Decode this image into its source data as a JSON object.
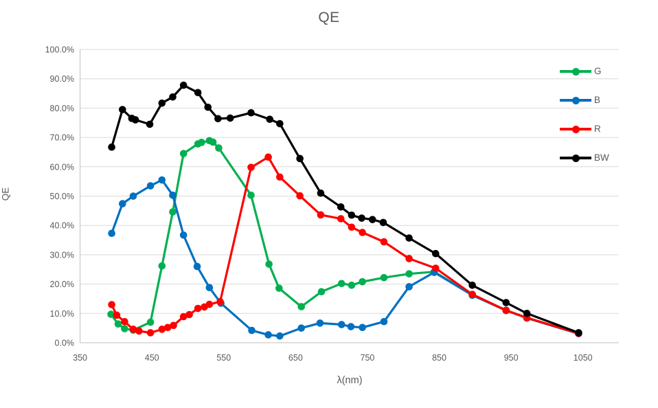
{
  "chart": {
    "title": "QE",
    "y_axis_title": "QE",
    "x_axis_title": "λ(nm)",
    "colors": {
      "text": "#595959",
      "gridline": "#D9D9D9",
      "axis_line": "#BFBFBF",
      "background": "#FFFFFF"
    }
  },
  "chart_data": {
    "type": "line",
    "title": "QE",
    "xlabel": "λ(nm)",
    "ylabel": "QE",
    "xlim": [
      350,
      1100
    ],
    "ylim": [
      0,
      100
    ],
    "grid": "horizontal",
    "legend_position": "right-overlay",
    "x_ticks": [
      {
        "value": 350,
        "label": "350"
      },
      {
        "value": 450,
        "label": "450"
      },
      {
        "value": 550,
        "label": "550"
      },
      {
        "value": 650,
        "label": "650"
      },
      {
        "value": 750,
        "label": "750"
      },
      {
        "value": 850,
        "label": "850"
      },
      {
        "value": 950,
        "label": "950"
      },
      {
        "value": 1050,
        "label": "1050"
      }
    ],
    "y_ticks": [
      {
        "value": 0,
        "label": "0.0%"
      },
      {
        "value": 10,
        "label": "10.0%"
      },
      {
        "value": 20,
        "label": "20.0%"
      },
      {
        "value": 30,
        "label": "30.0%"
      },
      {
        "value": 40,
        "label": "40.0%"
      },
      {
        "value": 50,
        "label": "50.0%"
      },
      {
        "value": 60,
        "label": "60.0%"
      },
      {
        "value": 70,
        "label": "70.0%"
      },
      {
        "value": 80,
        "label": "80.0%"
      },
      {
        "value": 90,
        "label": "90.0%"
      },
      {
        "value": 100,
        "label": "100.0%"
      }
    ],
    "series": [
      {
        "name": "G",
        "color": "#00B050",
        "points": [
          [
            393,
            9.7
          ],
          [
            403,
            6.4
          ],
          [
            412,
            4.8
          ],
          [
            424,
            4.3
          ],
          [
            448,
            7.0
          ],
          [
            464,
            26.2
          ],
          [
            479,
            44.6
          ],
          [
            494,
            64.5
          ],
          [
            514,
            67.8
          ],
          [
            519,
            68.3
          ],
          [
            530,
            68.9
          ],
          [
            535,
            68.4
          ],
          [
            543,
            66.4
          ],
          [
            588,
            50.3
          ],
          [
            613,
            26.8
          ],
          [
            627,
            18.6
          ],
          [
            658,
            12.3
          ],
          [
            686,
            17.4
          ],
          [
            714,
            20.2
          ],
          [
            728,
            19.6
          ],
          [
            743,
            20.8
          ],
          [
            773,
            22.2
          ],
          [
            808,
            23.5
          ],
          [
            843,
            24.2
          ],
          [
            896,
            16.4
          ],
          [
            943,
            11.1
          ],
          [
            972,
            8.5
          ],
          [
            1044,
            3.2
          ]
        ]
      },
      {
        "name": "B",
        "color": "#0070C0",
        "points": [
          [
            394,
            37.3
          ],
          [
            409,
            47.4
          ],
          [
            424,
            50.0
          ],
          [
            448,
            53.5
          ],
          [
            464,
            55.5
          ],
          [
            479,
            50.3
          ],
          [
            494,
            36.7
          ],
          [
            513,
            26.0
          ],
          [
            530,
            18.8
          ],
          [
            546,
            13.5
          ],
          [
            589,
            4.2
          ],
          [
            612,
            2.7
          ],
          [
            628,
            2.3
          ],
          [
            658,
            5.0
          ],
          [
            684,
            6.7
          ],
          [
            714,
            6.2
          ],
          [
            727,
            5.5
          ],
          [
            743,
            5.2
          ],
          [
            773,
            7.2
          ],
          [
            808,
            19.1
          ],
          [
            843,
            24.0
          ],
          [
            896,
            16.2
          ],
          [
            943,
            11.0
          ],
          [
            972,
            8.4
          ],
          [
            1044,
            3.1
          ]
        ]
      },
      {
        "name": "R",
        "color": "#FF0000",
        "points": [
          [
            394,
            13.0
          ],
          [
            401,
            9.4
          ],
          [
            412,
            7.2
          ],
          [
            424,
            4.6
          ],
          [
            432,
            4.0
          ],
          [
            448,
            3.4
          ],
          [
            464,
            4.6
          ],
          [
            472,
            5.2
          ],
          [
            480,
            5.9
          ],
          [
            494,
            8.9
          ],
          [
            502,
            9.6
          ],
          [
            514,
            11.7
          ],
          [
            523,
            12.2
          ],
          [
            530,
            13.1
          ],
          [
            545,
            14.0
          ],
          [
            588,
            59.8
          ],
          [
            612,
            63.3
          ],
          [
            628,
            56.5
          ],
          [
            656,
            50.1
          ],
          [
            685,
            43.6
          ],
          [
            713,
            42.3
          ],
          [
            728,
            39.4
          ],
          [
            743,
            37.6
          ],
          [
            773,
            34.4
          ],
          [
            808,
            28.7
          ],
          [
            845,
            25.4
          ],
          [
            896,
            16.5
          ],
          [
            943,
            11.0
          ],
          [
            972,
            8.5
          ],
          [
            1044,
            3.2
          ]
        ]
      },
      {
        "name": "BW",
        "color": "#000000",
        "points": [
          [
            394,
            66.7
          ],
          [
            409,
            79.5
          ],
          [
            422,
            76.5
          ],
          [
            427,
            76.0
          ],
          [
            447,
            74.5
          ],
          [
            464,
            81.7
          ],
          [
            479,
            83.8
          ],
          [
            494,
            87.8
          ],
          [
            514,
            85.3
          ],
          [
            528,
            80.3
          ],
          [
            542,
            76.4
          ],
          [
            559,
            76.6
          ],
          [
            588,
            78.4
          ],
          [
            614,
            76.2
          ],
          [
            628,
            74.7
          ],
          [
            656,
            62.8
          ],
          [
            685,
            51.0
          ],
          [
            713,
            46.3
          ],
          [
            728,
            43.5
          ],
          [
            742,
            42.5
          ],
          [
            757,
            42.0
          ],
          [
            772,
            41.0
          ],
          [
            808,
            35.7
          ],
          [
            845,
            30.4
          ],
          [
            896,
            19.6
          ],
          [
            943,
            13.7
          ],
          [
            972,
            10.0
          ],
          [
            1044,
            3.4
          ]
        ]
      }
    ]
  }
}
